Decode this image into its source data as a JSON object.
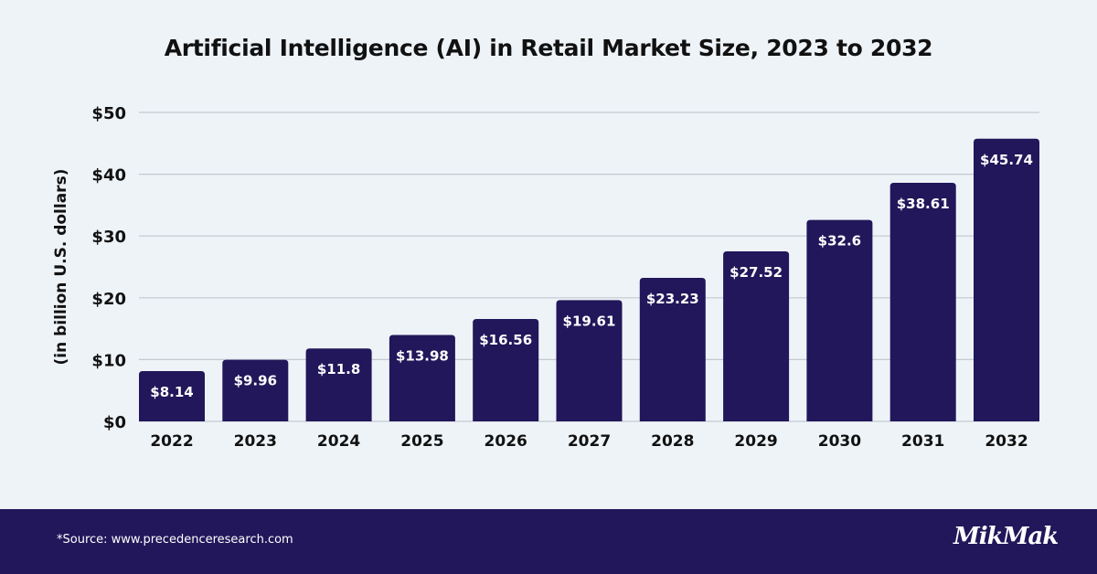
{
  "chart_data": {
    "type": "bar",
    "title": "Artificial Intelligence (AI) in Retail Market Size, 2023 to 2032",
    "xlabel": "",
    "ylabel": "(in billion U.S. dollars)",
    "categories": [
      "2022",
      "2023",
      "2024",
      "2025",
      "2026",
      "2027",
      "2028",
      "2029",
      "2030",
      "2031",
      "2032"
    ],
    "values": [
      8.14,
      9.96,
      11.8,
      13.98,
      16.56,
      19.61,
      23.23,
      27.52,
      32.6,
      38.61,
      45.74
    ],
    "data_labels": [
      "$8.14",
      "$9.96",
      "$11.8",
      "$13.98",
      "$16.56",
      "$19.61",
      "$23.23",
      "$27.52",
      "$32.6",
      "$38.61",
      "$45.74"
    ],
    "ylim": [
      0,
      50
    ],
    "yticks": [
      0,
      10,
      20,
      30,
      40,
      50
    ],
    "ytick_labels": [
      "$0",
      "$10",
      "$20",
      "$30",
      "$40",
      "$50"
    ],
    "grid": true,
    "bar_color": "#21175a",
    "label_color": "#ffffff"
  },
  "footer": {
    "source": "*Source: www.precedenceresearch.com",
    "logo": "MikMak",
    "background": "#21175a"
  }
}
